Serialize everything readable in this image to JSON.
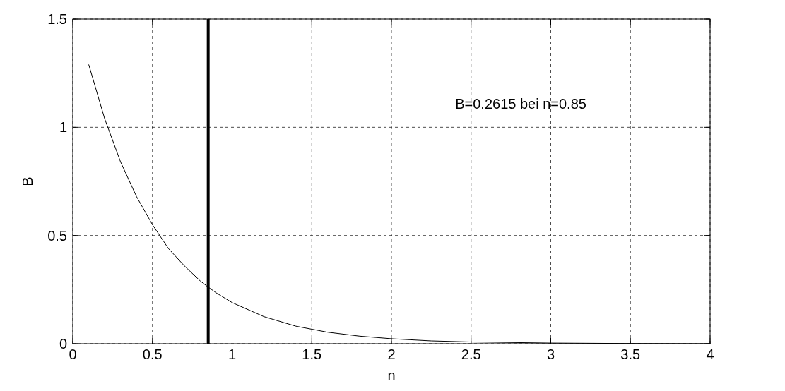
{
  "chart_data": {
    "type": "line",
    "xlabel": "n",
    "ylabel": "B",
    "x": [
      0.1,
      0.2,
      0.3,
      0.4,
      0.5,
      0.6,
      0.7,
      0.8,
      0.85,
      0.9,
      1.0,
      1.2,
      1.4,
      1.6,
      1.8,
      2.0,
      2.25,
      2.5,
      3.0,
      3.5,
      4.0
    ],
    "series": [
      {
        "color": "#000000",
        "values": [
          1.29,
          1.04,
          0.84,
          0.68,
          0.55,
          0.44,
          0.36,
          0.29,
          0.2615,
          0.235,
          0.19,
          0.125,
          0.081,
          0.053,
          0.035,
          0.023,
          0.013,
          0.008,
          0.003,
          0.001,
          0
        ]
      }
    ],
    "xlim": [
      0,
      4
    ],
    "ylim": [
      0,
      1.5
    ],
    "xticks": [
      0,
      0.5,
      1,
      1.5,
      2,
      2.5,
      3,
      3.5,
      4
    ],
    "yticks": [
      0,
      0.5,
      1,
      1.5
    ],
    "grid": true,
    "marker": "none",
    "line_style": "solid",
    "ref_lines": [
      {
        "axis": "x",
        "value": 0.85,
        "color": "#000000"
      }
    ],
    "annotations": [
      "B=0.2615 bei n=0.85"
    ]
  }
}
